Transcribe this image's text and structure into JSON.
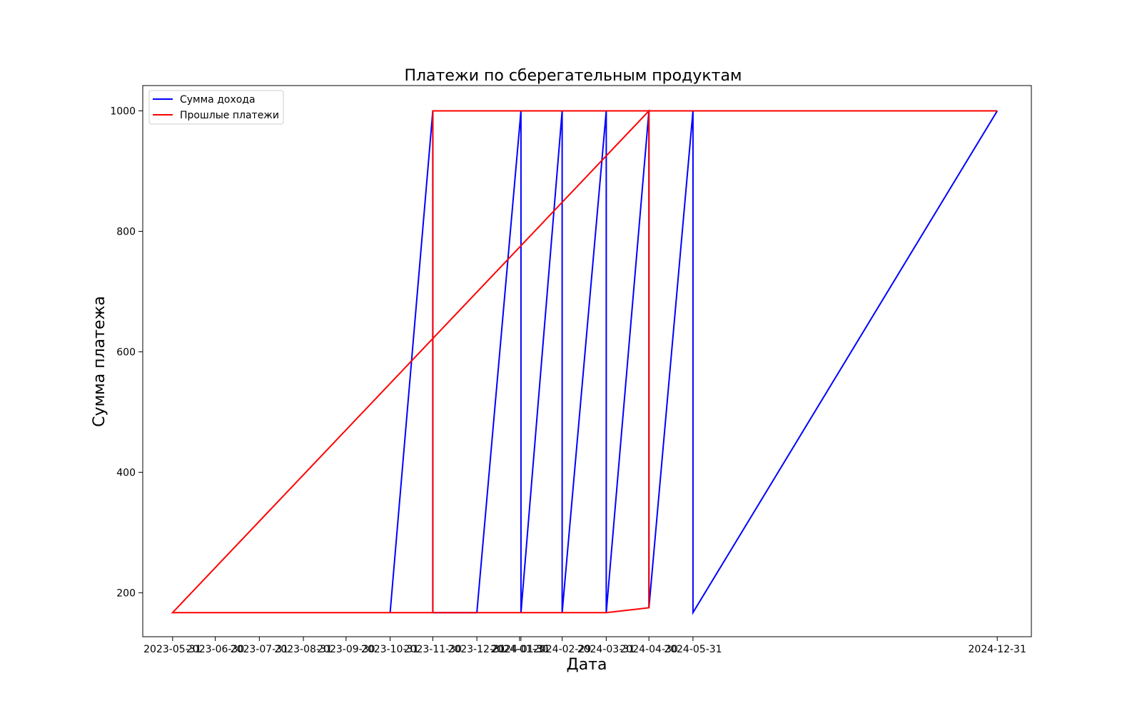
{
  "chart_data": {
    "type": "line",
    "title": "Платежи по сберегательным продуктам",
    "xlabel": "Дата",
    "ylabel": "Сумма платежа",
    "ylim": [
      127,
      1042
    ],
    "xlim": [
      "2023-05-10",
      "2025-01-24"
    ],
    "x_tick_labels": [
      "2023-05-31",
      "2023-06-30",
      "2023-07-31",
      "2023-08-31",
      "2023-09-30",
      "2023-10-31",
      "2023-11-30",
      "2023-12-31",
      "2024-01-30",
      "2024-01-31",
      "2024-02-29",
      "2024-03-31",
      "2024-04-30",
      "2024-05-31",
      "2024-12-31"
    ],
    "y_ticks": [
      200,
      400,
      600,
      800,
      1000
    ],
    "legend_position": "upper left",
    "grid": false,
    "series": [
      {
        "name": "Сумма дохода",
        "color": "#0000ff",
        "points": [
          [
            "2023-10-31",
            167
          ],
          [
            "2023-11-30",
            1000
          ],
          [
            "2023-11-30",
            167
          ],
          [
            "2023-12-31",
            167
          ],
          [
            "2024-01-31",
            1000
          ],
          [
            "2024-01-31",
            167
          ],
          [
            "2024-02-29",
            1000
          ],
          [
            "2024-02-29",
            167
          ],
          [
            "2024-03-31",
            1000
          ],
          [
            "2024-03-31",
            167
          ],
          [
            "2024-04-30",
            1000
          ],
          [
            "2024-04-30",
            175
          ],
          [
            "2024-05-31",
            1000
          ],
          [
            "2024-05-31",
            167
          ],
          [
            "2024-12-31",
            1000
          ]
        ]
      },
      {
        "name": "Прошлые платежи",
        "color": "#ff0000",
        "points": [
          [
            "2024-03-31",
            167
          ],
          [
            "2023-05-31",
            167
          ],
          [
            "2024-04-30",
            1000
          ],
          [
            "2024-04-30",
            175
          ],
          [
            "2024-03-31",
            167
          ],
          [
            "2023-11-30",
            167
          ],
          [
            "2023-11-30",
            1000
          ],
          [
            "2024-12-31",
            1000
          ]
        ]
      }
    ]
  }
}
